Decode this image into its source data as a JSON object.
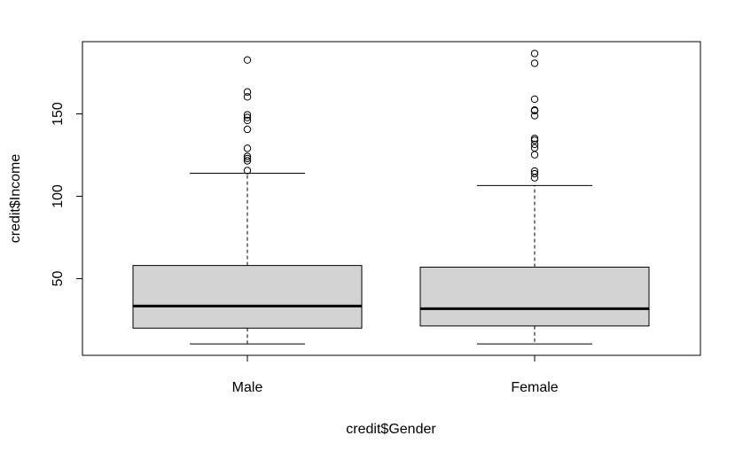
{
  "chart_data": {
    "type": "boxplot",
    "title": "",
    "xlabel": "credit$Gender",
    "ylabel": "credit$Income",
    "categories": [
      "Male",
      "Female"
    ],
    "ylim": [
      0,
      192
    ],
    "y_ticks": [
      50,
      100,
      150
    ],
    "grid": false,
    "legend": "none",
    "boxes": [
      {
        "name": "Male",
        "whisker_low": 10.4,
        "q1": 20.0,
        "median": 33.4,
        "q3": 58.0,
        "whisker_high": 114.0,
        "outliers": [
          115.6,
          121.5,
          122.9,
          124.2,
          129.1,
          140.6,
          146.0,
          147.8,
          149.4,
          160.3,
          163.3,
          182.7
        ]
      },
      {
        "name": "Female",
        "whisker_low": 10.4,
        "q1": 21.3,
        "median": 31.8,
        "q3": 57.0,
        "whisker_high": 106.5,
        "outliers": [
          111.2,
          113.7,
          115.3,
          125.2,
          129.4,
          131.5,
          134.0,
          135.1,
          148.9,
          151.9,
          152.3,
          158.9,
          180.7,
          186.6
        ]
      }
    ],
    "colors": {
      "box_fill": "#d3d3d3",
      "stroke": "#000000",
      "background": "#ffffff"
    }
  }
}
